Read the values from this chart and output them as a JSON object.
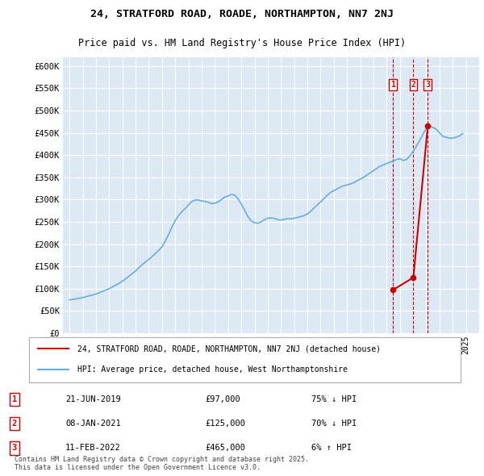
{
  "title": "24, STRATFORD ROAD, ROADE, NORTHAMPTON, NN7 2NJ",
  "subtitle": "Price paid vs. HM Land Registry's House Price Index (HPI)",
  "bg_color": "#dce9f5",
  "plot_bg_color": "#dce9f5",
  "grid_color": "white",
  "hpi_color": "#6aaed6",
  "price_color": "#cc0000",
  "vline_color": "#cc0000",
  "ylim": [
    0,
    620000
  ],
  "yticks": [
    0,
    50000,
    100000,
    150000,
    200000,
    250000,
    300000,
    350000,
    400000,
    450000,
    500000,
    550000,
    600000
  ],
  "xlim_start": 1994.5,
  "xlim_end": 2026.0,
  "transactions": [
    {
      "date_num": 2019.47,
      "price": 97000,
      "label": "1",
      "date_str": "21-JUN-2019",
      "pct": "75%",
      "dir": "↓",
      "hpi_rel": "HPI"
    },
    {
      "date_num": 2021.02,
      "price": 125000,
      "label": "2",
      "date_str": "08-JAN-2021",
      "pct": "70%",
      "dir": "↓",
      "hpi_rel": "HPI"
    },
    {
      "date_num": 2022.11,
      "price": 465000,
      "label": "3",
      "date_str": "11-FEB-2022",
      "pct": "6%",
      "dir": "↑",
      "hpi_rel": "HPI"
    }
  ],
  "legend_line1": "24, STRATFORD ROAD, ROADE, NORTHAMPTON, NN7 2NJ (detached house)",
  "legend_line2": "HPI: Average price, detached house, West Northamptonshire",
  "footnote": "Contains HM Land Registry data © Crown copyright and database right 2025.\nThis data is licensed under the Open Government Licence v3.0.",
  "hpi_years": [
    1995,
    1995.25,
    1995.5,
    1995.75,
    1996,
    1996.25,
    1996.5,
    1996.75,
    1997,
    1997.25,
    1997.5,
    1997.75,
    1998,
    1998.25,
    1998.5,
    1998.75,
    1999,
    1999.25,
    1999.5,
    1999.75,
    2000,
    2000.25,
    2000.5,
    2000.75,
    2001,
    2001.25,
    2001.5,
    2001.75,
    2002,
    2002.25,
    2002.5,
    2002.75,
    2003,
    2003.25,
    2003.5,
    2003.75,
    2004,
    2004.25,
    2004.5,
    2004.75,
    2005,
    2005.25,
    2005.5,
    2005.75,
    2006,
    2006.25,
    2006.5,
    2006.75,
    2007,
    2007.25,
    2007.5,
    2007.75,
    2008,
    2008.25,
    2008.5,
    2008.75,
    2009,
    2009.25,
    2009.5,
    2009.75,
    2010,
    2010.25,
    2010.5,
    2010.75,
    2011,
    2011.25,
    2011.5,
    2011.75,
    2012,
    2012.25,
    2012.5,
    2012.75,
    2013,
    2013.25,
    2013.5,
    2013.75,
    2014,
    2014.25,
    2014.5,
    2014.75,
    2015,
    2015.25,
    2015.5,
    2015.75,
    2016,
    2016.25,
    2016.5,
    2016.75,
    2017,
    2017.25,
    2017.5,
    2017.75,
    2018,
    2018.25,
    2018.5,
    2018.75,
    2019,
    2019.25,
    2019.5,
    2019.75,
    2020,
    2020.25,
    2020.5,
    2020.75,
    2021,
    2021.25,
    2021.5,
    2021.75,
    2022,
    2022.25,
    2022.5,
    2022.75,
    2023,
    2023.25,
    2023.5,
    2023.75,
    2024,
    2024.25,
    2024.5,
    2024.75
  ],
  "hpi_values": [
    75000,
    76000,
    77000,
    78500,
    80000,
    82000,
    84000,
    86000,
    88000,
    91000,
    94000,
    97000,
    100000,
    104000,
    108000,
    112000,
    117000,
    122000,
    128000,
    134000,
    140000,
    147000,
    154000,
    160000,
    166000,
    172000,
    179000,
    186000,
    194000,
    207000,
    222000,
    238000,
    253000,
    264000,
    273000,
    280000,
    288000,
    296000,
    299000,
    299000,
    297000,
    296000,
    294000,
    291000,
    292000,
    295000,
    300000,
    306000,
    308000,
    312000,
    310000,
    302000,
    290000,
    276000,
    262000,
    252000,
    248000,
    247000,
    250000,
    255000,
    258000,
    259000,
    258000,
    255000,
    254000,
    256000,
    257000,
    257000,
    258000,
    260000,
    262000,
    264000,
    268000,
    274000,
    281000,
    288000,
    295000,
    302000,
    310000,
    316000,
    320000,
    324000,
    328000,
    331000,
    333000,
    335000,
    338000,
    342000,
    346000,
    350000,
    355000,
    360000,
    365000,
    370000,
    375000,
    378000,
    381000,
    384000,
    387000,
    390000,
    392000,
    388000,
    390000,
    398000,
    408000,
    420000,
    433000,
    447000,
    460000,
    465000,
    462000,
    458000,
    450000,
    442000,
    440000,
    438000,
    438000,
    440000,
    443000,
    448000
  ],
  "price_years": [
    2019.47,
    2021.02,
    2022.11
  ],
  "price_values": [
    97000,
    125000,
    465000
  ]
}
